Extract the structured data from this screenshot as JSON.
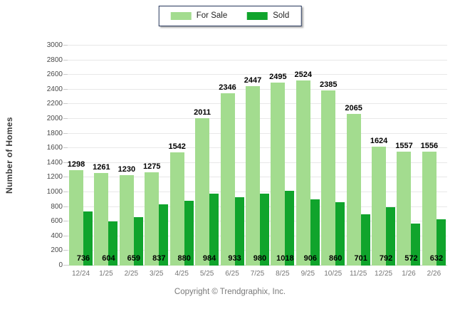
{
  "legend": {
    "for_sale_label": "For Sale",
    "sold_label": "Sold"
  },
  "footer": {
    "copyright": "Copyright © Trendgraphix, Inc."
  },
  "colors": {
    "for_sale": "#A3DC8F",
    "sold": "#10A42C",
    "gridline": "#E8E8E8",
    "axis_line": "#C9C9C9",
    "tick": "#C9C9C9"
  },
  "chart_data": {
    "type": "bar",
    "title": "",
    "xlabel": "",
    "ylabel": "Number of Homes",
    "ylim": [
      0,
      3000
    ],
    "ytick_step": 200,
    "grid": true,
    "legend_position": "top-center",
    "categories": [
      "12/24",
      "1/25",
      "2/25",
      "3/25",
      "4/25",
      "5/25",
      "6/25",
      "7/25",
      "8/25",
      "9/25",
      "10/25",
      "11/25",
      "12/25",
      "1/26",
      "2/26"
    ],
    "series": [
      {
        "name": "For Sale",
        "values": [
          1298,
          1261,
          1230,
          1275,
          1542,
          2011,
          2346,
          2447,
          2495,
          2524,
          2385,
          2065,
          1624,
          1557,
          1556
        ]
      },
      {
        "name": "Sold",
        "values": [
          736,
          604,
          659,
          837,
          880,
          984,
          933,
          980,
          1018,
          906,
          860,
          701,
          792,
          572,
          632
        ]
      }
    ]
  }
}
